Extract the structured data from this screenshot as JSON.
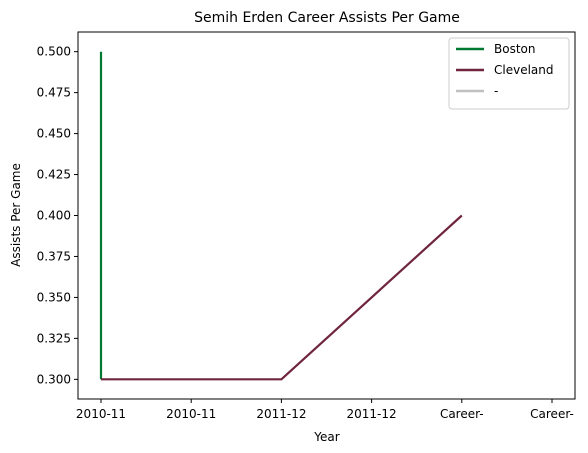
{
  "chart_data": {
    "type": "line",
    "title": "Semih Erden Career Assists Per Game",
    "xlabel": "Year",
    "ylabel": "Assists Per Game",
    "x_ticks": [
      "2010-11",
      "2010-11",
      "2011-12",
      "2011-12",
      "Career-",
      "Career-"
    ],
    "y_ticks": [
      "0.300",
      "0.325",
      "0.350",
      "0.375",
      "0.400",
      "0.425",
      "0.450",
      "0.475",
      "0.500"
    ],
    "ylim": [
      0.288,
      0.512
    ],
    "grid": false,
    "legend_position": "top-right",
    "series": [
      {
        "name": "Boston",
        "color": "#007a33",
        "points": [
          {
            "x": "2010-11",
            "y": 0.5
          },
          {
            "x": "2010-11",
            "y": 0.3
          }
        ]
      },
      {
        "name": "Cleveland",
        "color": "#6f263d",
        "points": [
          {
            "x": "2010-11",
            "y": 0.3
          },
          {
            "x": "2011-12",
            "y": 0.3
          },
          {
            "x": "Career-",
            "y": 0.4
          }
        ]
      },
      {
        "name": "-",
        "color": "#c0c0c0",
        "points": []
      }
    ]
  }
}
